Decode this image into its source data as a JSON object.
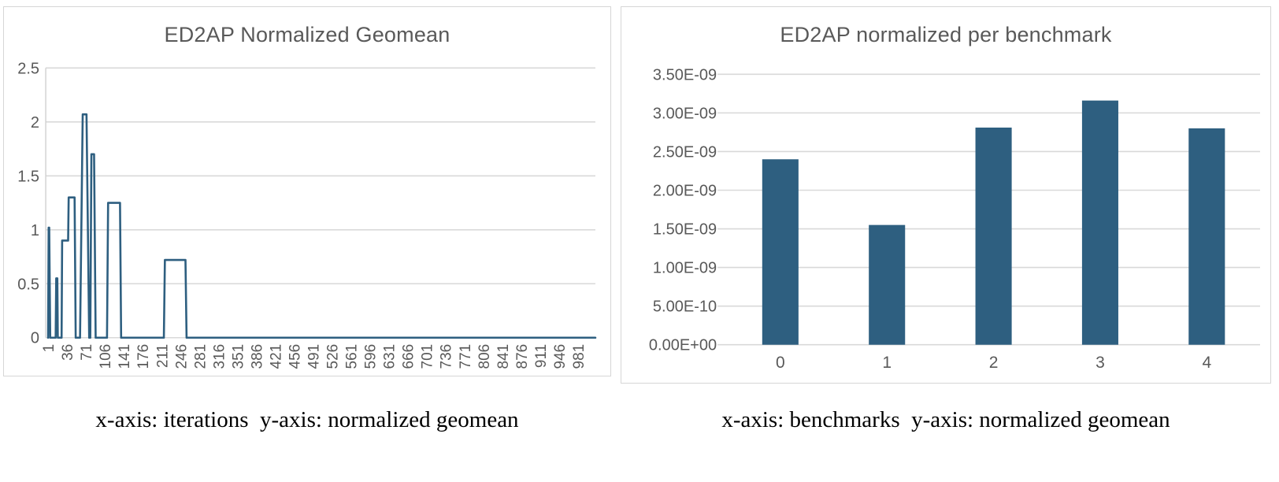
{
  "colors": {
    "series": "#2e5f80",
    "grid": "#d9d9d9",
    "axis": "#d0d0d0",
    "tick_text": "#595959",
    "title_text": "#595959",
    "caption_text": "#000000",
    "card_border": "#d6d6d6",
    "card_bg": "#ffffff"
  },
  "chart_data": [
    {
      "type": "line",
      "title": "ED2AP Normalized Geomean",
      "xlabel": "iterations",
      "ylabel": "normalized geomean",
      "xlim": [
        1,
        1013
      ],
      "ylim": [
        0,
        2.5
      ],
      "y_ticks": [
        0,
        0.5,
        1,
        1.5,
        2,
        2.5
      ],
      "y_tick_labels": [
        "0",
        "0.5",
        "1",
        "1.5",
        "2",
        "2.5"
      ],
      "x_tick_start": 1,
      "x_tick_step": 35,
      "x_tick_labels": [
        "1",
        "36",
        "71",
        "106",
        "141",
        "176",
        "211",
        "246",
        "281",
        "316",
        "351",
        "386",
        "421",
        "456",
        "491",
        "526",
        "561",
        "596",
        "631",
        "666",
        "701",
        "736",
        "771",
        "806",
        "841",
        "876",
        "911",
        "946",
        "981"
      ],
      "grid": true,
      "legend": "none",
      "points": [
        [
          1,
          0
        ],
        [
          2,
          1.02
        ],
        [
          3,
          1.02
        ],
        [
          5,
          0
        ],
        [
          15,
          0
        ],
        [
          16,
          0.55
        ],
        [
          18,
          0.55
        ],
        [
          19,
          0
        ],
        [
          26,
          0
        ],
        [
          27,
          0.9
        ],
        [
          38,
          0.9
        ],
        [
          39,
          1.3
        ],
        [
          50,
          1.3
        ],
        [
          52,
          0
        ],
        [
          60,
          0
        ],
        [
          65,
          2.07
        ],
        [
          72,
          2.07
        ],
        [
          77,
          0
        ],
        [
          79,
          0
        ],
        [
          81,
          1.7
        ],
        [
          86,
          1.7
        ],
        [
          89,
          0
        ],
        [
          110,
          0
        ],
        [
          112,
          1.25
        ],
        [
          134,
          1.25
        ],
        [
          136,
          0
        ],
        [
          215,
          0
        ],
        [
          217,
          0.72
        ],
        [
          255,
          0.72
        ],
        [
          257,
          0
        ],
        [
          1013,
          0
        ]
      ]
    },
    {
      "type": "bar",
      "title": "ED2AP normalized per benchmark",
      "xlabel": "benchmarks",
      "ylabel": "normalized geomean",
      "categories": [
        "0",
        "1",
        "2",
        "3",
        "4"
      ],
      "values": [
        2.4e-09,
        1.55e-09,
        2.81e-09,
        3.16e-09,
        2.8e-09
      ],
      "ylim": [
        0,
        3.5e-09
      ],
      "y_ticks": [
        0,
        5e-10,
        1e-09,
        1.5e-09,
        2e-09,
        2.5e-09,
        3e-09,
        3.5e-09
      ],
      "y_tick_labels": [
        "0.00E+00",
        "5.00E-10",
        "1.00E-09",
        "1.50E-09",
        "2.00E-09",
        "2.50E-09",
        "3.00E-09",
        "3.50E-09"
      ],
      "grid": true,
      "legend": "none"
    }
  ],
  "captions": [
    {
      "text": "x-axis: iterations  y-axis: normalized geomean"
    },
    {
      "text": "x-axis: benchmarks  y-axis: normalized geomean"
    }
  ]
}
